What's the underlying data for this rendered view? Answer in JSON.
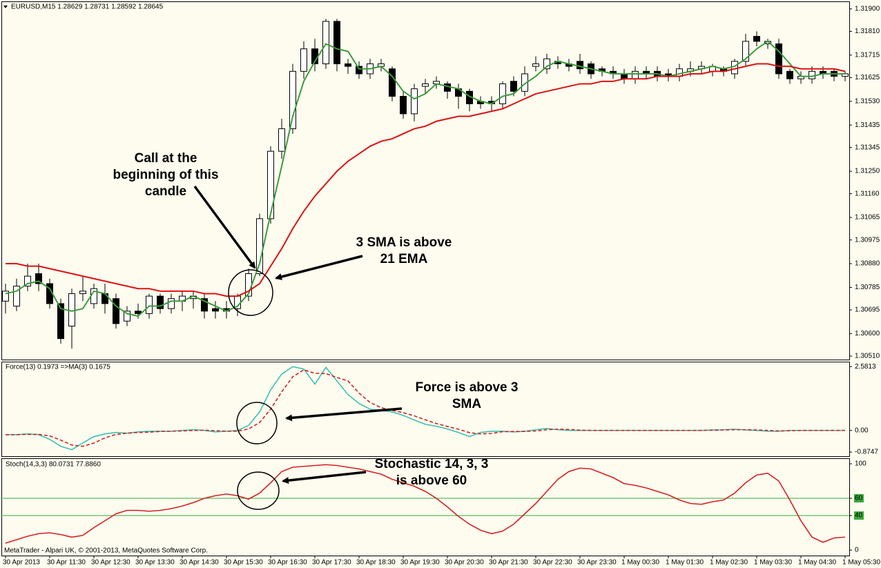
{
  "chart_data": [
    {
      "type": "candlestick",
      "title": "EURUSD,M15  1.28629 1.28731 1.28592 1.28645",
      "categories": [
        "30 Apr 2013",
        null,
        null,
        null,
        "30 Apr 11:30",
        null,
        null,
        null,
        "30 Apr 12:30",
        null,
        null,
        null,
        "30 Apr 13:30",
        null,
        null,
        null,
        "30 Apr 14:30",
        null,
        null,
        null,
        "30 Apr 15:30",
        null,
        null,
        null,
        "30 Apr 16:30",
        null,
        null,
        null,
        "30 Apr 17:30",
        null,
        null,
        null,
        "30 Apr 18:30",
        null,
        null,
        null,
        "30 Apr 19:30",
        null,
        null,
        null,
        "30 Apr 20:30",
        null,
        null,
        null,
        "30 Apr 21:30",
        null,
        null,
        null,
        "30 Apr 22:30",
        null,
        null,
        null,
        "30 Apr 23:30",
        null,
        null,
        null,
        "1 May 00:30",
        null,
        null,
        null,
        "1 May 01:30",
        null,
        null,
        null,
        "1 May 02:30",
        null,
        null,
        null,
        "1 May 03:30",
        null,
        null,
        null,
        "1 May 04:30",
        null,
        null,
        null,
        "1 May 05:30"
      ],
      "open": [
        1.3073,
        1.3071,
        1.3079,
        1.3084,
        1.308,
        1.3072,
        1.3063,
        1.3076,
        1.3072,
        1.3076,
        1.3074,
        1.3065,
        1.3069,
        1.3068,
        1.3075,
        1.307,
        1.3073,
        1.3074,
        1.3074,
        1.307,
        1.307,
        1.307,
        1.3075,
        1.3084,
        1.3106,
        1.3133,
        1.3142,
        1.3165,
        1.3174,
        1.3168,
        1.3185,
        1.3168,
        1.3167,
        1.3164,
        1.3167,
        1.3166,
        1.3155,
        1.3148,
        1.3159,
        1.316,
        1.316,
        1.3158,
        1.3157,
        1.3153,
        1.3153,
        1.3152,
        1.3161,
        1.3157,
        1.3167,
        1.3166,
        1.3169,
        1.3168,
        1.3169,
        1.3168,
        1.3166,
        1.3165,
        1.3164,
        1.3162,
        1.3165,
        1.3165,
        1.3164,
        1.3163,
        1.3165,
        1.3166,
        1.3165,
        1.3166,
        1.3164,
        1.3169,
        1.3179,
        1.3176,
        1.3176,
        1.3165,
        1.3162,
        1.3162,
        1.3165,
        1.3165,
        1.3163
      ],
      "high": [
        1.308,
        1.3082,
        1.3088,
        1.3088,
        1.3082,
        1.3074,
        1.3078,
        1.3083,
        1.308,
        1.308,
        1.3076,
        1.3071,
        1.3072,
        1.3076,
        1.3076,
        1.3076,
        1.3077,
        1.3077,
        1.3076,
        1.3073,
        1.3073,
        1.3076,
        1.3086,
        1.3108,
        1.3135,
        1.3146,
        1.3168,
        1.3177,
        1.3178,
        1.3186,
        1.3186,
        1.317,
        1.3169,
        1.317,
        1.317,
        1.3167,
        1.3157,
        1.316,
        1.3162,
        1.3163,
        1.3161,
        1.316,
        1.3158,
        1.3155,
        1.3155,
        1.3161,
        1.3163,
        1.3167,
        1.3171,
        1.3172,
        1.3171,
        1.317,
        1.3172,
        1.3169,
        1.3167,
        1.3167,
        1.3166,
        1.3167,
        1.3167,
        1.3167,
        1.3166,
        1.3168,
        1.3169,
        1.3169,
        1.3168,
        1.3167,
        1.317,
        1.318,
        1.3181,
        1.3178,
        1.3178,
        1.3166,
        1.3165,
        1.3167,
        1.3167,
        1.3166,
        1.3165
      ],
      "low": [
        1.3068,
        1.3069,
        1.3077,
        1.3077,
        1.307,
        1.3056,
        1.3054,
        1.3073,
        1.307,
        1.3068,
        1.3062,
        1.3063,
        1.3066,
        1.3066,
        1.3068,
        1.3068,
        1.3069,
        1.307,
        1.3066,
        1.3066,
        1.3066,
        1.3067,
        1.3073,
        1.3083,
        1.3104,
        1.313,
        1.314,
        1.3162,
        1.3165,
        1.3166,
        1.3165,
        1.3164,
        1.3162,
        1.3162,
        1.3165,
        1.3153,
        1.3146,
        1.3145,
        1.3156,
        1.3158,
        1.3154,
        1.315,
        1.3149,
        1.315,
        1.3149,
        1.315,
        1.3155,
        1.3155,
        1.3165,
        1.3164,
        1.3166,
        1.3165,
        1.3164,
        1.3162,
        1.3163,
        1.3162,
        1.316,
        1.316,
        1.3162,
        1.3161,
        1.3161,
        1.3161,
        1.3163,
        1.3164,
        1.3163,
        1.3163,
        1.3162,
        1.3167,
        1.3175,
        1.3174,
        1.3162,
        1.316,
        1.316,
        1.316,
        1.3162,
        1.3161,
        1.3161
      ],
      "close": [
        1.3077,
        1.3079,
        1.3083,
        1.308,
        1.3072,
        1.3058,
        1.3076,
        1.3077,
        1.3078,
        1.3072,
        1.3064,
        1.3069,
        1.3068,
        1.3075,
        1.307,
        1.3074,
        1.3075,
        1.3075,
        1.3069,
        1.3069,
        1.3069,
        1.3075,
        1.3084,
        1.3106,
        1.3133,
        1.3142,
        1.3165,
        1.3174,
        1.3168,
        1.3185,
        1.3168,
        1.3167,
        1.3164,
        1.3168,
        1.3168,
        1.3155,
        1.3148,
        1.3158,
        1.316,
        1.3161,
        1.3157,
        1.3155,
        1.3152,
        1.3152,
        1.3152,
        1.316,
        1.3157,
        1.3164,
        1.3168,
        1.317,
        1.3168,
        1.3167,
        1.3166,
        1.3164,
        1.3165,
        1.3164,
        1.3162,
        1.3165,
        1.3164,
        1.3163,
        1.3163,
        1.3166,
        1.3166,
        1.3167,
        1.3167,
        1.3165,
        1.3169,
        1.3177,
        1.3177,
        1.3177,
        1.3164,
        1.3162,
        1.3163,
        1.3165,
        1.3164,
        1.3163,
        1.3164
      ],
      "up_color": "#ffffff",
      "down_color": "#000000",
      "series": [
        {
          "color": "#3c9a3c",
          "values": [
            1.3076,
            1.3077,
            1.308,
            1.3081,
            1.3078,
            1.307,
            1.3069,
            1.307,
            1.3077,
            1.3076,
            1.3071,
            1.3068,
            1.3067,
            1.3071,
            1.3071,
            1.3073,
            1.3073,
            1.3075,
            1.3073,
            1.3071,
            1.3069,
            1.3071,
            1.3076,
            1.3088,
            1.3108,
            1.3127,
            1.3147,
            1.3161,
            1.3169,
            1.3176,
            1.3174,
            1.3173,
            1.3166,
            1.3166,
            1.3167,
            1.3163,
            1.3157,
            1.3154,
            1.3156,
            1.316,
            1.3159,
            1.3158,
            1.3155,
            1.3153,
            1.3152,
            1.3155,
            1.3156,
            1.316,
            1.3163,
            1.3167,
            1.3169,
            1.3168,
            1.3167,
            1.3166,
            1.3165,
            1.3164,
            1.3164,
            1.3164,
            1.3164,
            1.3164,
            1.3163,
            1.3164,
            1.3165,
            1.3166,
            1.3167,
            1.3166,
            1.3167,
            1.317,
            1.3174,
            1.3177,
            1.3173,
            1.3168,
            1.3163,
            1.3163,
            1.3164,
            1.3164,
            1.3164
          ]
        },
        {
          "color": "#dd1111",
          "values": [
            1.3088,
            1.3088,
            1.3087,
            1.3087,
            1.3086,
            1.3085,
            1.3084,
            1.3083,
            1.3082,
            1.3081,
            1.308,
            1.3079,
            1.3078,
            1.3078,
            1.3077,
            1.3077,
            1.3077,
            1.3077,
            1.3076,
            1.3076,
            1.3075,
            1.3075,
            1.3077,
            1.308,
            1.3087,
            1.3094,
            1.3102,
            1.3109,
            1.3115,
            1.312,
            1.3125,
            1.3129,
            1.3132,
            1.3135,
            1.3137,
            1.3138,
            1.314,
            1.3142,
            1.3143,
            1.3145,
            1.3146,
            1.3147,
            1.3147,
            1.3148,
            1.3149,
            1.315,
            1.3152,
            1.3154,
            1.3156,
            1.3157,
            1.3158,
            1.3159,
            1.316,
            1.316,
            1.3161,
            1.3161,
            1.3162,
            1.3162,
            1.3162,
            1.3163,
            1.3163,
            1.3163,
            1.3164,
            1.3164,
            1.3165,
            1.3165,
            1.3166,
            1.3167,
            1.3168,
            1.3168,
            1.3167,
            1.3167,
            1.3166,
            1.3166,
            1.3166,
            1.3166,
            1.3165
          ]
        }
      ],
      "ylim": [
        1.30496,
        1.3193
      ],
      "yticks": [
        {
          "value": 1.319,
          "label": "1.31900"
        },
        {
          "value": 1.3181,
          "label": "1.31810"
        },
        1.31715,
        1.31625,
        {
          "value": 1.3153,
          "label": "1.31530"
        },
        1.31435,
        1.31345,
        {
          "value": 1.3125,
          "label": "1.31250"
        },
        {
          "value": 1.3116,
          "label": "1.31160"
        },
        1.31065,
        1.30975,
        {
          "value": 1.3088,
          "label": "1.30880"
        },
        1.30785,
        1.30695,
        {
          "value": 1.306,
          "label": "1.30600"
        },
        {
          "value": 1.3051,
          "label": "1.30510"
        }
      ],
      "annotations": [
        {
          "lines": [
            "Call at the",
            "beginning of this",
            "candle"
          ]
        },
        {
          "lines": [
            "3 SMA is above",
            "21 EMA"
          ]
        }
      ]
    },
    {
      "type": "line",
      "title": "Force(13) 0.1973  =>MA(3) 0.1675",
      "series": [
        {
          "color": "#3cc0b0",
          "values": [
            -0.17,
            -0.17,
            -0.14,
            -0.17,
            -0.36,
            -0.64,
            -0.78,
            -0.5,
            -0.25,
            -0.14,
            -0.08,
            -0.11,
            -0.06,
            -0.03,
            -0.03,
            -0.03,
            0,
            0.03,
            0,
            -0.06,
            -0.03,
            0,
            0.2,
            0.75,
            1.64,
            2.28,
            2.58,
            2.48,
            1.87,
            2.55,
            2.0,
            1.45,
            1.09,
            0.86,
            0.81,
            0.75,
            0.61,
            0.42,
            0.25,
            0.17,
            0.06,
            -0.08,
            -0.25,
            -0.08,
            -0.03,
            -0.03,
            -0.06,
            -0.03,
            0.03,
            0.08,
            0.03,
            0,
            0,
            0,
            0,
            0,
            0,
            0,
            0,
            0,
            0,
            0,
            0,
            0,
            0.02,
            0.03,
            0.05,
            0.02,
            0,
            -0.03,
            -0.03,
            0,
            0,
            0,
            0,
            0,
            0
          ]
        },
        {
          "color": "#cc2222",
          "dashed": true,
          "values": [
            -0.17,
            -0.17,
            -0.16,
            -0.16,
            -0.22,
            -0.39,
            -0.59,
            -0.64,
            -0.51,
            -0.3,
            -0.16,
            -0.11,
            -0.08,
            -0.07,
            -0.04,
            -0.03,
            -0.02,
            0,
            0.01,
            -0.01,
            -0.03,
            -0.03,
            0.06,
            0.32,
            0.86,
            1.56,
            2.17,
            2.45,
            2.31,
            2.3,
            2.14,
            2.0,
            1.51,
            1.13,
            0.92,
            0.81,
            0.72,
            0.59,
            0.43,
            0.28,
            0.16,
            0.05,
            -0.09,
            -0.14,
            -0.12,
            -0.05,
            -0.04,
            -0.04,
            -0.02,
            0.03,
            0.05,
            0.04,
            0.01,
            0,
            0,
            0,
            0,
            0,
            0,
            0,
            0,
            0,
            0,
            0,
            0.01,
            0.02,
            0.03,
            0.03,
            0.02,
            0,
            -0.02,
            -0.01,
            0,
            0,
            0,
            0,
            0
          ]
        }
      ],
      "ylim": [
        -1.04,
        2.78
      ],
      "yticks": [
        2.5813,
        {
          "value": 0,
          "label": "0.00"
        },
        -0.8747
      ],
      "annotations": [
        {
          "lines": [
            "Force is above 3",
            "SMA"
          ]
        }
      ]
    },
    {
      "type": "line",
      "title": "Stoch(14,3,3) 80.0731 77.8860",
      "series": [
        {
          "color": "#d42020",
          "values": [
            8,
            12,
            16,
            19,
            20,
            18,
            15,
            17,
            26,
            34,
            42,
            46,
            46,
            45,
            46,
            48,
            51,
            55,
            60,
            63,
            65,
            63,
            59,
            66,
            78,
            91,
            96,
            97,
            98,
            99,
            98,
            96,
            94,
            91,
            88,
            82,
            78,
            74,
            68,
            60,
            50,
            39,
            30,
            23,
            19,
            22,
            30,
            42,
            54,
            68,
            82,
            91,
            95,
            94,
            89,
            84,
            77,
            75,
            72,
            68,
            64,
            58,
            54,
            53,
            56,
            58,
            66,
            78,
            87,
            89,
            80,
            58,
            34,
            15,
            9,
            14,
            15
          ]
        }
      ],
      "ylim": [
        -6.4,
        106.4
      ],
      "yticks": [
        100,
        60,
        40,
        0
      ],
      "levels": [
        60,
        40
      ],
      "level_color": "#3aa83a",
      "annotations": [
        {
          "lines": [
            "Stochastic 14, 3, 3",
            "is above 60"
          ]
        }
      ],
      "note": "MetaTrader - Alpari UK, © 2001-2013, MetaQuotes Software Corp."
    }
  ]
}
